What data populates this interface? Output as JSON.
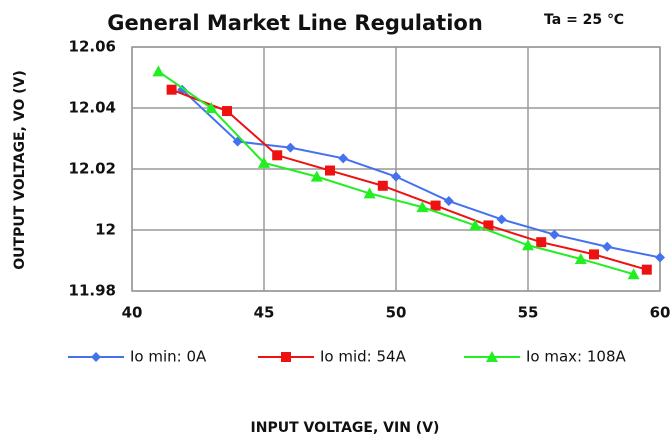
{
  "chart_data": {
    "type": "line",
    "title": "General Market Line Regulation",
    "annotation": "Ta = 25 ℃",
    "x_label": "INPUT VOLTAGE, VIN (V)",
    "y_label": "OUTPUT VOLTAGE, VO (V)",
    "xlim": [
      40,
      60
    ],
    "xticks": [
      40,
      45,
      50,
      55,
      60
    ],
    "ylim": [
      11.98,
      12.06
    ],
    "yticks": [
      12.06,
      12.04,
      12.02,
      12,
      11.98
    ],
    "grid": true,
    "legend": "bottom",
    "series": [
      {
        "name": "Io min: 0A",
        "color": "#4472ef",
        "marker": "diamond",
        "x": [
          41.9,
          44,
          46,
          48,
          50,
          52,
          54,
          56,
          58,
          60
        ],
        "values": [
          12.046,
          12.029,
          12.027,
          12.0235,
          12.0175,
          12.0095,
          12.0035,
          11.9985,
          11.9945,
          11.991
        ]
      },
      {
        "name": "Io mid: 54A",
        "color": "#ee1111",
        "marker": "square",
        "x": [
          41.5,
          43.6,
          45.5,
          47.5,
          49.5,
          51.5,
          53.5,
          55.5,
          57.5,
          59.5
        ],
        "values": [
          12.046,
          12.039,
          12.0245,
          12.0195,
          12.0145,
          12.008,
          12.0015,
          11.996,
          11.992,
          11.987
        ]
      },
      {
        "name": "Io max: 108A",
        "color": "#22ee22",
        "marker": "triangle",
        "x": [
          41,
          43,
          45,
          47,
          49,
          51,
          53,
          55,
          57,
          59
        ],
        "values": [
          12.052,
          12.04,
          12.022,
          12.0175,
          12.012,
          12.0075,
          12.0015,
          11.995,
          11.9905,
          11.9855
        ]
      }
    ]
  }
}
